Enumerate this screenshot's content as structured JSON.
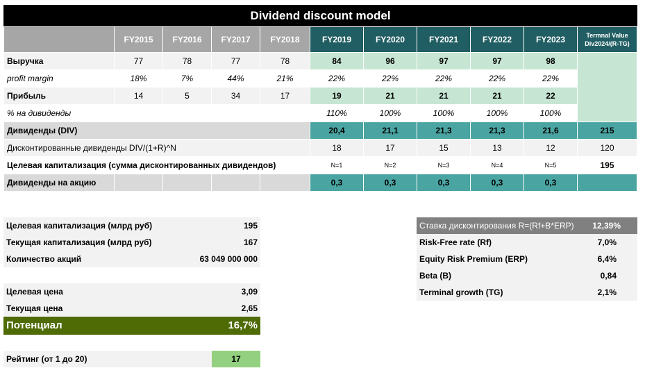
{
  "title": "Dividend discount model",
  "years": [
    "FY2015",
    "FY2016",
    "FY2017",
    "FY2018",
    "FY2019",
    "FY2020",
    "FY2021",
    "FY2022",
    "FY2023"
  ],
  "terminal_header": [
    "Termnal Value",
    "Div2024/(R-TG)"
  ],
  "rows": {
    "revenue": {
      "label": "Выручка",
      "values": [
        "77",
        "78",
        "77",
        "78",
        "84",
        "96",
        "97",
        "97",
        "98"
      ]
    },
    "margin": {
      "label": "profit margin",
      "values": [
        "18%",
        "7%",
        "44%",
        "21%",
        "22%",
        "22%",
        "22%",
        "22%",
        "22%"
      ]
    },
    "profit": {
      "label": "Прибыль",
      "values": [
        "14",
        "5",
        "34",
        "17",
        "19",
        "21",
        "21",
        "21",
        "22"
      ]
    },
    "payout": {
      "label": "% на дивиденды",
      "values": [
        "110%",
        "100%",
        "100%",
        "100%",
        "100%"
      ]
    },
    "div": {
      "label": "Дивиденды (DIV)",
      "values": [
        "20,4",
        "21,1",
        "21,3",
        "21,3",
        "21,6"
      ],
      "terminal": "215"
    },
    "disc": {
      "label": "Дисконтированные дивиденды DIV/(1+R)^N",
      "values": [
        "18",
        "17",
        "15",
        "13",
        "12"
      ],
      "terminal": "120"
    },
    "target": {
      "label": "Целевая капитализация (сумма дисконтированных дивидендов)",
      "values": [
        "N=1",
        "N=2",
        "N=3",
        "N=4",
        "N=5"
      ],
      "terminal": "195"
    },
    "dps": {
      "label": "Дивиденды на акцию",
      "values": [
        "0,3",
        "0,3",
        "0,3",
        "0,3",
        "0,3"
      ]
    }
  },
  "summary": {
    "target_cap": {
      "label": "Целевая капитализация (млрд руб)",
      "value": "195"
    },
    "current_cap": {
      "label": "Текущая капитализация (млрд руб)",
      "value": "167"
    },
    "shares": {
      "label": "Количество акций",
      "value": "63 049 000 000"
    },
    "target_price": {
      "label": "Целевая цена",
      "value": "3,09"
    },
    "current_price": {
      "label": "Текущая цена",
      "value": "2,65"
    },
    "potential": {
      "label": "Потенциал",
      "value": "16,7%"
    },
    "rating": {
      "label": "Рейтинг (от 1 до 20)",
      "value": "17"
    }
  },
  "rates": {
    "discount": {
      "label": "Ставка дисконтирования R=(Rf+B*ERP)",
      "value": "12,39%"
    },
    "rf": {
      "label": "Risk-Free rate (Rf)",
      "value": "7,0%"
    },
    "erp": {
      "label": "Equity Risk Premium (ERP)",
      "value": "6,4%"
    },
    "beta": {
      "label": "Beta (B)",
      "value": "0,84"
    },
    "tg": {
      "label": "Terminal growth (TG)",
      "value": "2,1%"
    }
  },
  "colors": {
    "header_gray": "#a6a6a6",
    "header_teal": "#215e63",
    "light_green": "#c6e6d3",
    "teal": "#4aa5a2",
    "olive": "#4e6b06",
    "rating_green": "#93d07f"
  }
}
